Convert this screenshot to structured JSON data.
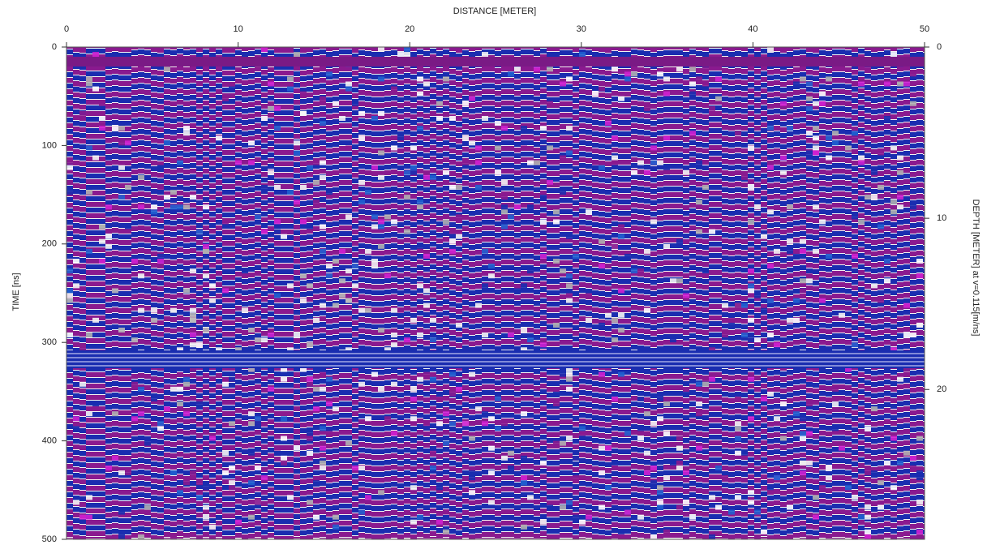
{
  "chart_data": {
    "type": "radargram",
    "xlabel": "DISTANCE [METER]",
    "ylabel": "TIME [ns]",
    "y2label": "DEPTH [METER] at v=0.115[m/ns]",
    "xlim": [
      0,
      50
    ],
    "xticks": [
      0,
      10,
      20,
      30,
      40,
      50
    ],
    "ylim": [
      500,
      0
    ],
    "yticks": [
      0,
      100,
      200,
      300,
      400,
      500
    ],
    "y2lim": [
      28.75,
      0
    ],
    "y2ticks": [
      0,
      10,
      20
    ]
  }
}
